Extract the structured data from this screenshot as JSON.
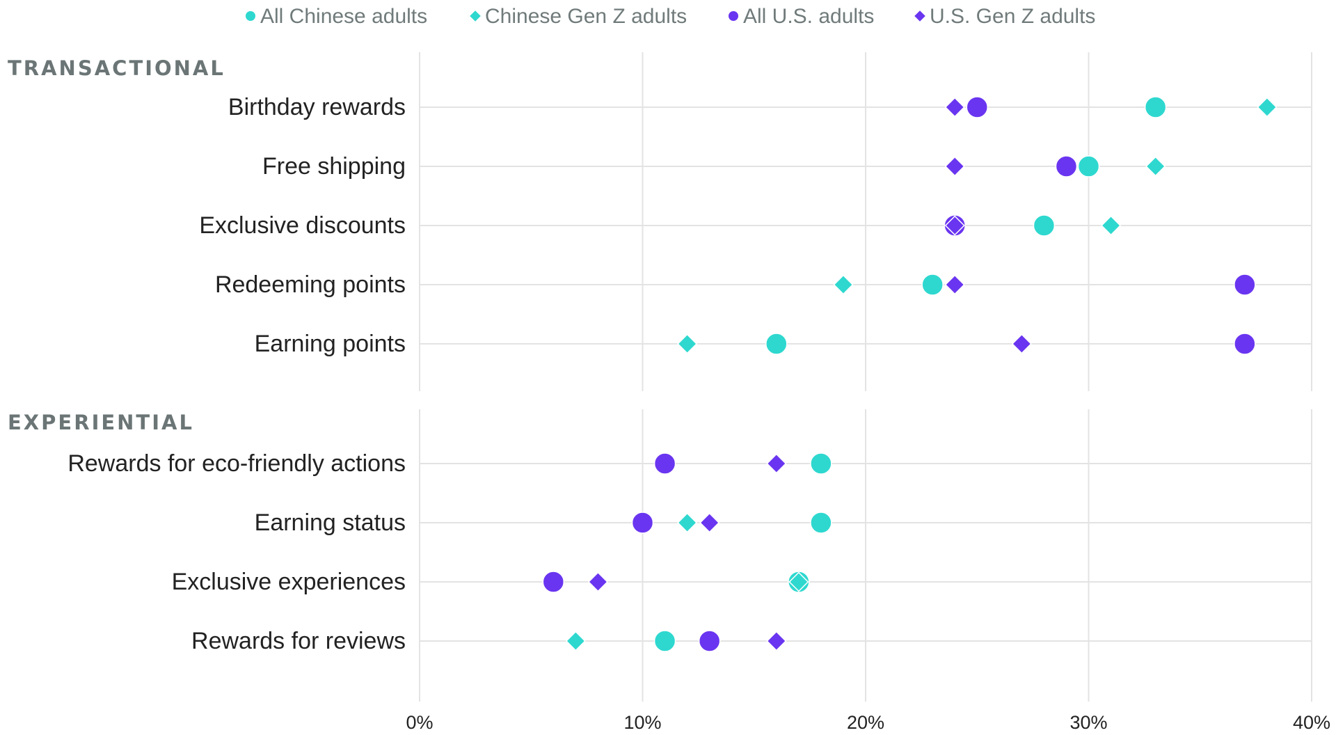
{
  "chart_data": {
    "type": "scatter",
    "x_axis": {
      "range": [
        0,
        40
      ],
      "ticks": [
        0,
        10,
        20,
        30,
        40
      ],
      "tick_labels": [
        "0%",
        "10%",
        "20%",
        "30%",
        "40%"
      ],
      "grid": true
    },
    "legend": {
      "placement": "top-center",
      "entries": [
        {
          "name": "All Chinese adults",
          "shape": "circle",
          "color": "#2ed8cf"
        },
        {
          "name": "Chinese Gen Z adults",
          "shape": "diamond",
          "color": "#2ed8cf"
        },
        {
          "name": "All U.S. adults",
          "shape": "circle",
          "color": "#6a35f0"
        },
        {
          "name": "U.S. Gen Z adults",
          "shape": "diamond",
          "color": "#6a35f0"
        }
      ]
    },
    "sections": [
      {
        "title": "TRANSACTIONAL",
        "categories": [
          {
            "label": "Birthday rewards",
            "values": {
              "All Chinese adults": 33,
              "Chinese Gen Z adults": 38,
              "All U.S. adults": 25,
              "U.S. Gen Z adults": 24
            }
          },
          {
            "label": "Free shipping",
            "values": {
              "All Chinese adults": 30,
              "Chinese Gen Z adults": 33,
              "All U.S. adults": 29,
              "U.S. Gen Z adults": 24
            }
          },
          {
            "label": "Exclusive discounts",
            "values": {
              "All Chinese adults": 28,
              "Chinese Gen Z adults": 31,
              "All U.S. adults": 24,
              "U.S. Gen Z adults": 24
            }
          },
          {
            "label": "Redeeming points",
            "values": {
              "All Chinese adults": 23,
              "Chinese Gen Z adults": 19,
              "All U.S. adults": 37,
              "U.S. Gen Z adults": 24
            }
          },
          {
            "label": "Earning points",
            "values": {
              "All Chinese adults": 16,
              "Chinese Gen Z adults": 12,
              "All U.S. adults": 37,
              "U.S. Gen Z adults": 27
            }
          }
        ]
      },
      {
        "title": "EXPERIENTIAL",
        "categories": [
          {
            "label": "Rewards for eco-friendly actions",
            "values": {
              "All Chinese adults": 18,
              "Chinese Gen Z adults": 16,
              "All U.S. adults": 11,
              "U.S. Gen Z adults": 16
            }
          },
          {
            "label": "Earning status",
            "values": {
              "All Chinese adults": 18,
              "Chinese Gen Z adults": 12,
              "All U.S. adults": 10,
              "U.S. Gen Z adults": 13
            }
          },
          {
            "label": "Exclusive experiences",
            "values": {
              "All Chinese adults": 17,
              "Chinese Gen Z adults": 17,
              "All U.S. adults": 6,
              "U.S. Gen Z adults": 8
            }
          },
          {
            "label": "Rewards for reviews",
            "values": {
              "All Chinese adults": 11,
              "Chinese Gen Z adults": 7,
              "All U.S. adults": 13,
              "U.S. Gen Z adults": 16
            }
          }
        ]
      }
    ]
  }
}
